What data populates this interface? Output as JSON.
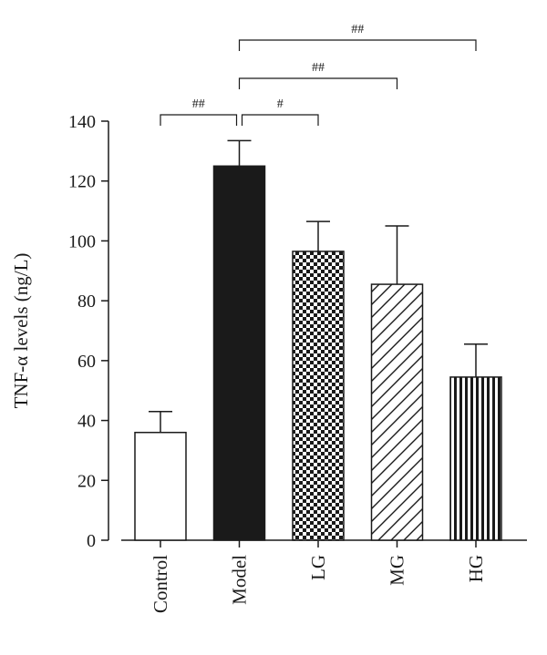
{
  "chart_data": {
    "type": "bar",
    "categories": [
      "Control",
      "Model",
      "LG",
      "MG",
      "HG"
    ],
    "values": [
      36,
      125,
      96.5,
      85.5,
      54.5
    ],
    "errors": [
      7,
      8.5,
      10,
      19.5,
      11
    ],
    "fills": [
      "white",
      "solid",
      "checker",
      "diagonal",
      "vertical"
    ],
    "ylabel": "TNF-α levels (ng/L)",
    "ylim": [
      0,
      140
    ],
    "yticks": [
      0,
      20,
      40,
      60,
      80,
      100,
      120,
      140
    ],
    "grid": false,
    "colors": {
      "stroke": "#1a1a1a",
      "fill_dark": "#1a1a1a",
      "background": "#ffffff"
    },
    "significance": [
      {
        "from": "Control",
        "to": "Model",
        "label": "##"
      },
      {
        "from": "Model",
        "to": "LG",
        "label": "#"
      },
      {
        "from": "Model",
        "to": "MG",
        "label": "##"
      },
      {
        "from": "Model",
        "to": "HG",
        "label": "##"
      }
    ]
  }
}
